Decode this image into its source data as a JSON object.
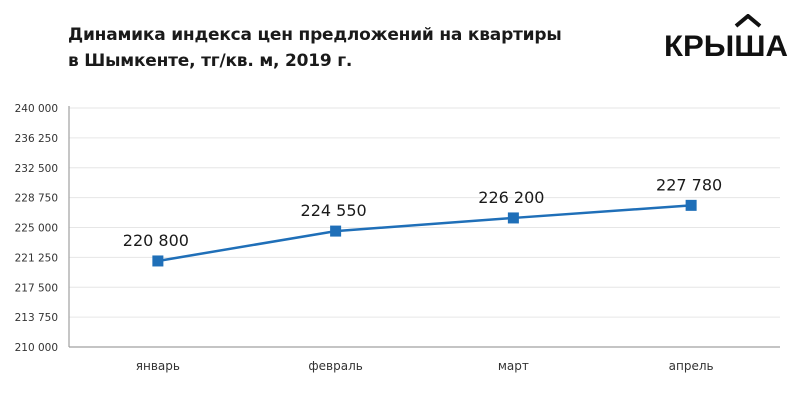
{
  "header": {
    "title_line1": "Динамика индекса цен предложений на квартиры",
    "title_line2": "в Шымкенте, тг/кв. м, 2019 г.",
    "logo_text": "КРЫША"
  },
  "chart_data": {
    "type": "line",
    "title": "Динамика индекса цен предложений на квартиры в Шымкенте, тг/кв. м, 2019 г.",
    "categories": [
      "январь",
      "февраль",
      "март",
      "апрель"
    ],
    "series": [
      {
        "values": [
          220800,
          224550,
          226200,
          227780
        ]
      }
    ],
    "data_labels": [
      "220 800",
      "224 550",
      "226 200",
      "227 780"
    ],
    "ylim": [
      210000,
      240000
    ],
    "yticks": [
      210000,
      213750,
      217500,
      221250,
      225000,
      228750,
      232500,
      236250,
      240000
    ],
    "ytick_labels": [
      "210 000",
      "213 750",
      "217 500",
      "221 250",
      "225 000",
      "228 750",
      "232 500",
      "236 250",
      "240 000"
    ],
    "grid": true,
    "legend": "none",
    "colors": {
      "line": "#1f6fb8",
      "grid": "#e6e6e6",
      "axis": "#a0a0a0"
    }
  }
}
